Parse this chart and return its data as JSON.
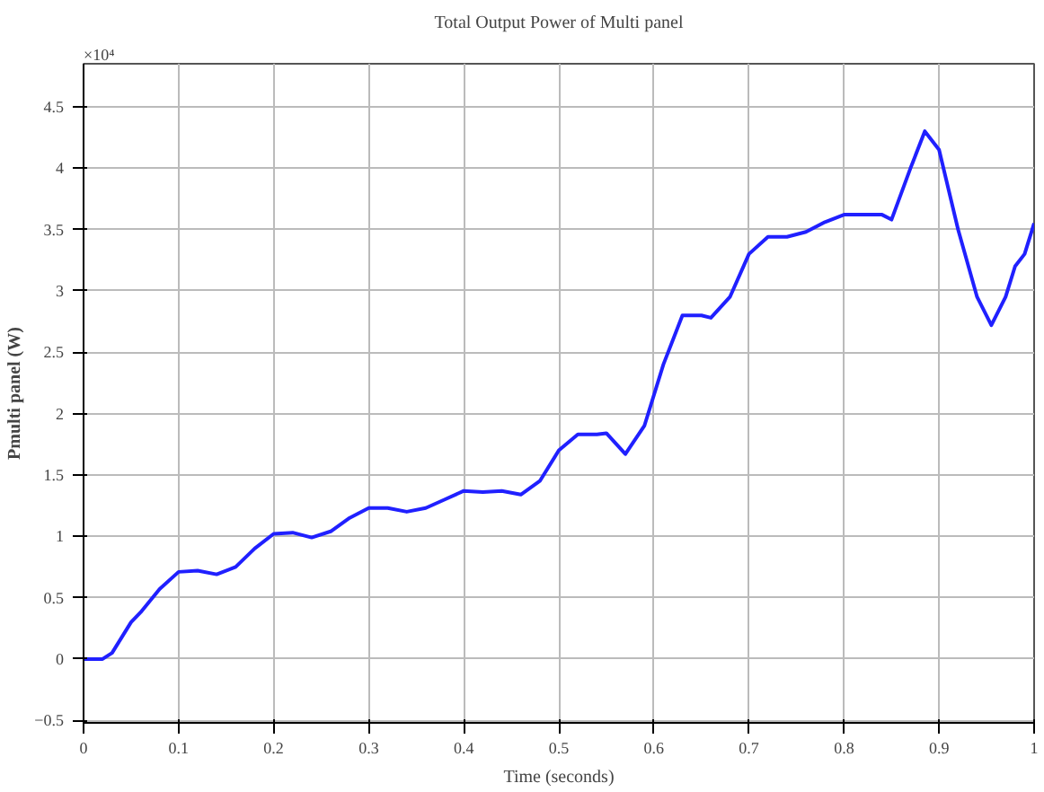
{
  "chart_data": {
    "type": "line",
    "title": "Total Output Power of Multi panel",
    "xlabel": "Time (seconds)",
    "ylabel": "Pmulti panel (W)",
    "annotations": [
      "×10⁴"
    ],
    "x": [
      0,
      0.02,
      0.03,
      0.05,
      0.06,
      0.08,
      0.1,
      0.12,
      0.14,
      0.16,
      0.18,
      0.2,
      0.22,
      0.24,
      0.26,
      0.28,
      0.3,
      0.32,
      0.34,
      0.36,
      0.38,
      0.4,
      0.42,
      0.44,
      0.46,
      0.48,
      0.5,
      0.52,
      0.54,
      0.55,
      0.57,
      0.59,
      0.61,
      0.63,
      0.65,
      0.66,
      0.68,
      0.7,
      0.72,
      0.74,
      0.76,
      0.78,
      0.8,
      0.84,
      0.85,
      0.87,
      0.885,
      0.9,
      0.92,
      0.94,
      0.955,
      0.97,
      0.98,
      0.99,
      1.0
    ],
    "series": [
      {
        "color": "#2020ff",
        "values": [
          0,
          0,
          0.05,
          0.3,
          0.38,
          0.57,
          0.71,
          0.72,
          0.69,
          0.75,
          0.9,
          1.02,
          1.03,
          0.99,
          1.04,
          1.15,
          1.23,
          1.23,
          1.2,
          1.23,
          1.3,
          1.37,
          1.36,
          1.37,
          1.34,
          1.45,
          1.7,
          1.83,
          1.83,
          1.84,
          1.67,
          1.9,
          2.4,
          2.8,
          2.8,
          2.78,
          2.95,
          3.3,
          3.44,
          3.44,
          3.48,
          3.56,
          3.62,
          3.62,
          3.58,
          4.0,
          4.3,
          4.15,
          3.5,
          2.95,
          2.72,
          2.95,
          3.2,
          3.3,
          3.55
        ]
      }
    ],
    "xlim": [
      0,
      1
    ],
    "ylim": [
      -0.52,
      4.85
    ],
    "xticks": [
      0,
      0.1,
      0.2,
      0.3,
      0.4,
      0.5,
      0.6,
      0.7,
      0.8,
      0.9,
      1
    ],
    "yticks": [
      -0.5,
      0,
      0.5,
      1,
      1.5,
      2,
      2.5,
      3,
      3.5,
      4,
      4.5
    ],
    "grid": true,
    "line_style": "solid",
    "marker": "none"
  }
}
